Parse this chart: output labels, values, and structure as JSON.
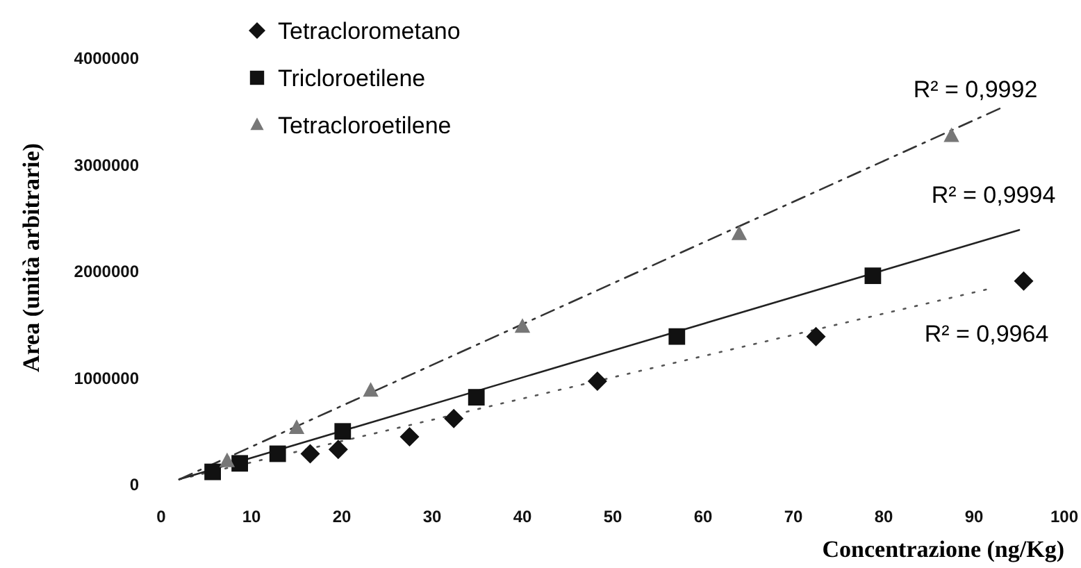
{
  "chart_data": {
    "type": "scatter",
    "xlabel": "Concentrazione (ng/Kg)",
    "ylabel": "Area (unità arbitrarie)",
    "xlim": [
      0,
      100
    ],
    "ylim": [
      0,
      4000000
    ],
    "xticks": [
      0,
      10,
      20,
      30,
      40,
      50,
      60,
      70,
      80,
      90,
      100
    ],
    "yticks": [
      0,
      1000000,
      2000000,
      3000000,
      4000000
    ],
    "grid": false,
    "legend": "top left",
    "series": [
      {
        "name": "Tetraclorometano",
        "marker": "diamond",
        "color": "#111111",
        "x": [
          16.5,
          19.6,
          27.5,
          32.4,
          48.3,
          72.5,
          95.5
        ],
        "values": [
          290000,
          330000,
          450000,
          620000,
          970000,
          1390000,
          1910000
        ]
      },
      {
        "name": "Tricloroetilene",
        "marker": "square",
        "color": "#111111",
        "x": [
          5.7,
          8.7,
          12.9,
          20.1,
          34.9,
          57.1,
          78.8
        ],
        "values": [
          120000,
          200000,
          290000,
          500000,
          820000,
          1390000,
          1960000
        ]
      },
      {
        "name": "Tetracloroetilene",
        "marker": "triangle",
        "color": "#777777",
        "x": [
          7.3,
          15,
          23.2,
          40,
          64,
          87.5
        ],
        "values": [
          220000,
          530000,
          880000,
          1480000,
          2350000,
          3270000
        ]
      },
      {
        "type": "line",
        "marker": "none",
        "line_style": "dotted",
        "color": "#555555",
        "x": [
          2,
          91.8
        ],
        "values": [
          50000,
          1840000
        ]
      },
      {
        "type": "line",
        "marker": "none",
        "line_style": "solid",
        "color": "#222222",
        "x": [
          2,
          95
        ],
        "values": [
          50000,
          2390000
        ]
      },
      {
        "type": "line",
        "marker": "none",
        "line_style": "dashed",
        "color": "#333333",
        "x": [
          2,
          93.4
        ],
        "values": [
          50000,
          3550000
        ]
      }
    ],
    "annotations": [
      "R² = 0,9992",
      "R² = 0,9994",
      "R² = 0,9964"
    ]
  }
}
